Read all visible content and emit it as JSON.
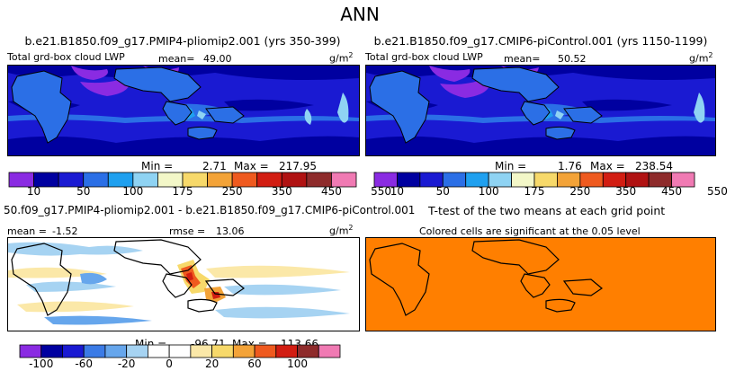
{
  "main_title": "ANN",
  "colors": {
    "abs_scale": [
      "#8a2be2",
      "#0000a0",
      "#1a1ad2",
      "#2b6fe6",
      "#1fa0ef",
      "#8fd3f3",
      "#f3f7c8",
      "#f7d96a",
      "#f3a338",
      "#ef5a1f",
      "#d21d12",
      "#b01212",
      "#8e2b2b",
      "#f07ab3"
    ],
    "diff_scale": [
      "#8a2be2",
      "#0000a0",
      "#1a1ad2",
      "#3b7be6",
      "#66a6ec",
      "#a6d3f2",
      "#ffffff",
      "#ffffff",
      "#fbe8a8",
      "#f7d96a",
      "#f3a338",
      "#ef5a1f",
      "#d21d12",
      "#8e2b2b",
      "#f07ab3"
    ],
    "significant": "#ff7f00"
  },
  "panels": [
    {
      "title": "b.e21.B1850.f09_g17.PMIP4-pliomip2.001 (yrs 350-399)",
      "left_label": "Total grd-box cloud LWP",
      "stat_label": "mean=",
      "stat_value": "49.00",
      "units": "g/m",
      "units_sup": "2",
      "min_label": "Min =",
      "min_value": "2.71",
      "max_label": "Max =",
      "max_value": "217.95"
    },
    {
      "title": "b.e21.B1850.f09_g17.CMIP6-piControl.001 (yrs 1150-1199)",
      "left_label": "Total grd-box cloud LWP",
      "stat_label": "mean=",
      "stat_value": "50.52",
      "units": "g/m",
      "units_sup": "2",
      "min_label": "Min =",
      "min_value": "1.76",
      "max_label": "Max =",
      "max_value": "238.54"
    },
    {
      "title": "50.f09_g17.PMIP4-pliomip2.001 - b.e21.B1850.f09_g17.CMIP6-piControl.001",
      "left_label": "mean =",
      "left_value": "-1.52",
      "rmse_label": "rmse =",
      "rmse_value": "13.06",
      "units": "g/m",
      "units_sup": "2",
      "min_label": "Min =",
      "min_value": "-96.71",
      "max_label": "Max =",
      "max_value": "113.66"
    },
    {
      "title": "T-test of the two means at each grid point",
      "note": "Colored cells are significant at the 0.05 level"
    }
  ],
  "chart_data": [
    {
      "type": "heatmap",
      "title": "b.e21.B1850.f09_g17.PMIP4-pliomip2.001 (yrs 350-399)",
      "variable": "Total grd-box cloud LWP",
      "units": "g/m2",
      "mean": 49.0,
      "min": 2.71,
      "max": 217.95,
      "colorbar_levels": [
        10,
        25,
        50,
        75,
        100,
        125,
        175,
        200,
        250,
        300,
        350,
        400,
        450,
        500,
        550
      ],
      "colorbar_tick_labels": [
        "10",
        "50",
        "100",
        "175",
        "250",
        "350",
        "450",
        "550"
      ]
    },
    {
      "type": "heatmap",
      "title": "b.e21.B1850.f09_g17.CMIP6-piControl.001 (yrs 1150-1199)",
      "variable": "Total grd-box cloud LWP",
      "units": "g/m2",
      "mean": 50.52,
      "min": 1.76,
      "max": 238.54,
      "colorbar_levels": [
        10,
        25,
        50,
        75,
        100,
        125,
        175,
        200,
        250,
        300,
        350,
        400,
        450,
        500,
        550
      ],
      "colorbar_tick_labels": [
        "10",
        "50",
        "100",
        "175",
        "250",
        "350",
        "450",
        "550"
      ]
    },
    {
      "type": "heatmap",
      "title": "50.f09_g17.PMIP4-pliomip2.001 - b.e21.B1850.f09_g17.CMIP6-piControl.001",
      "units": "g/m2",
      "mean": -1.52,
      "rmse": 13.06,
      "min": -96.71,
      "max": 113.66,
      "colorbar_levels": [
        -100,
        -80,
        -60,
        -40,
        -20,
        -10,
        -5,
        0,
        5,
        10,
        20,
        40,
        60,
        80,
        100
      ],
      "colorbar_tick_labels": [
        "-100",
        "-60",
        "-20",
        "0",
        "20",
        "60",
        "100"
      ]
    },
    {
      "type": "heatmap",
      "title": "T-test of the two means at each grid point",
      "note": "Colored cells are significant at the 0.05 level"
    }
  ]
}
